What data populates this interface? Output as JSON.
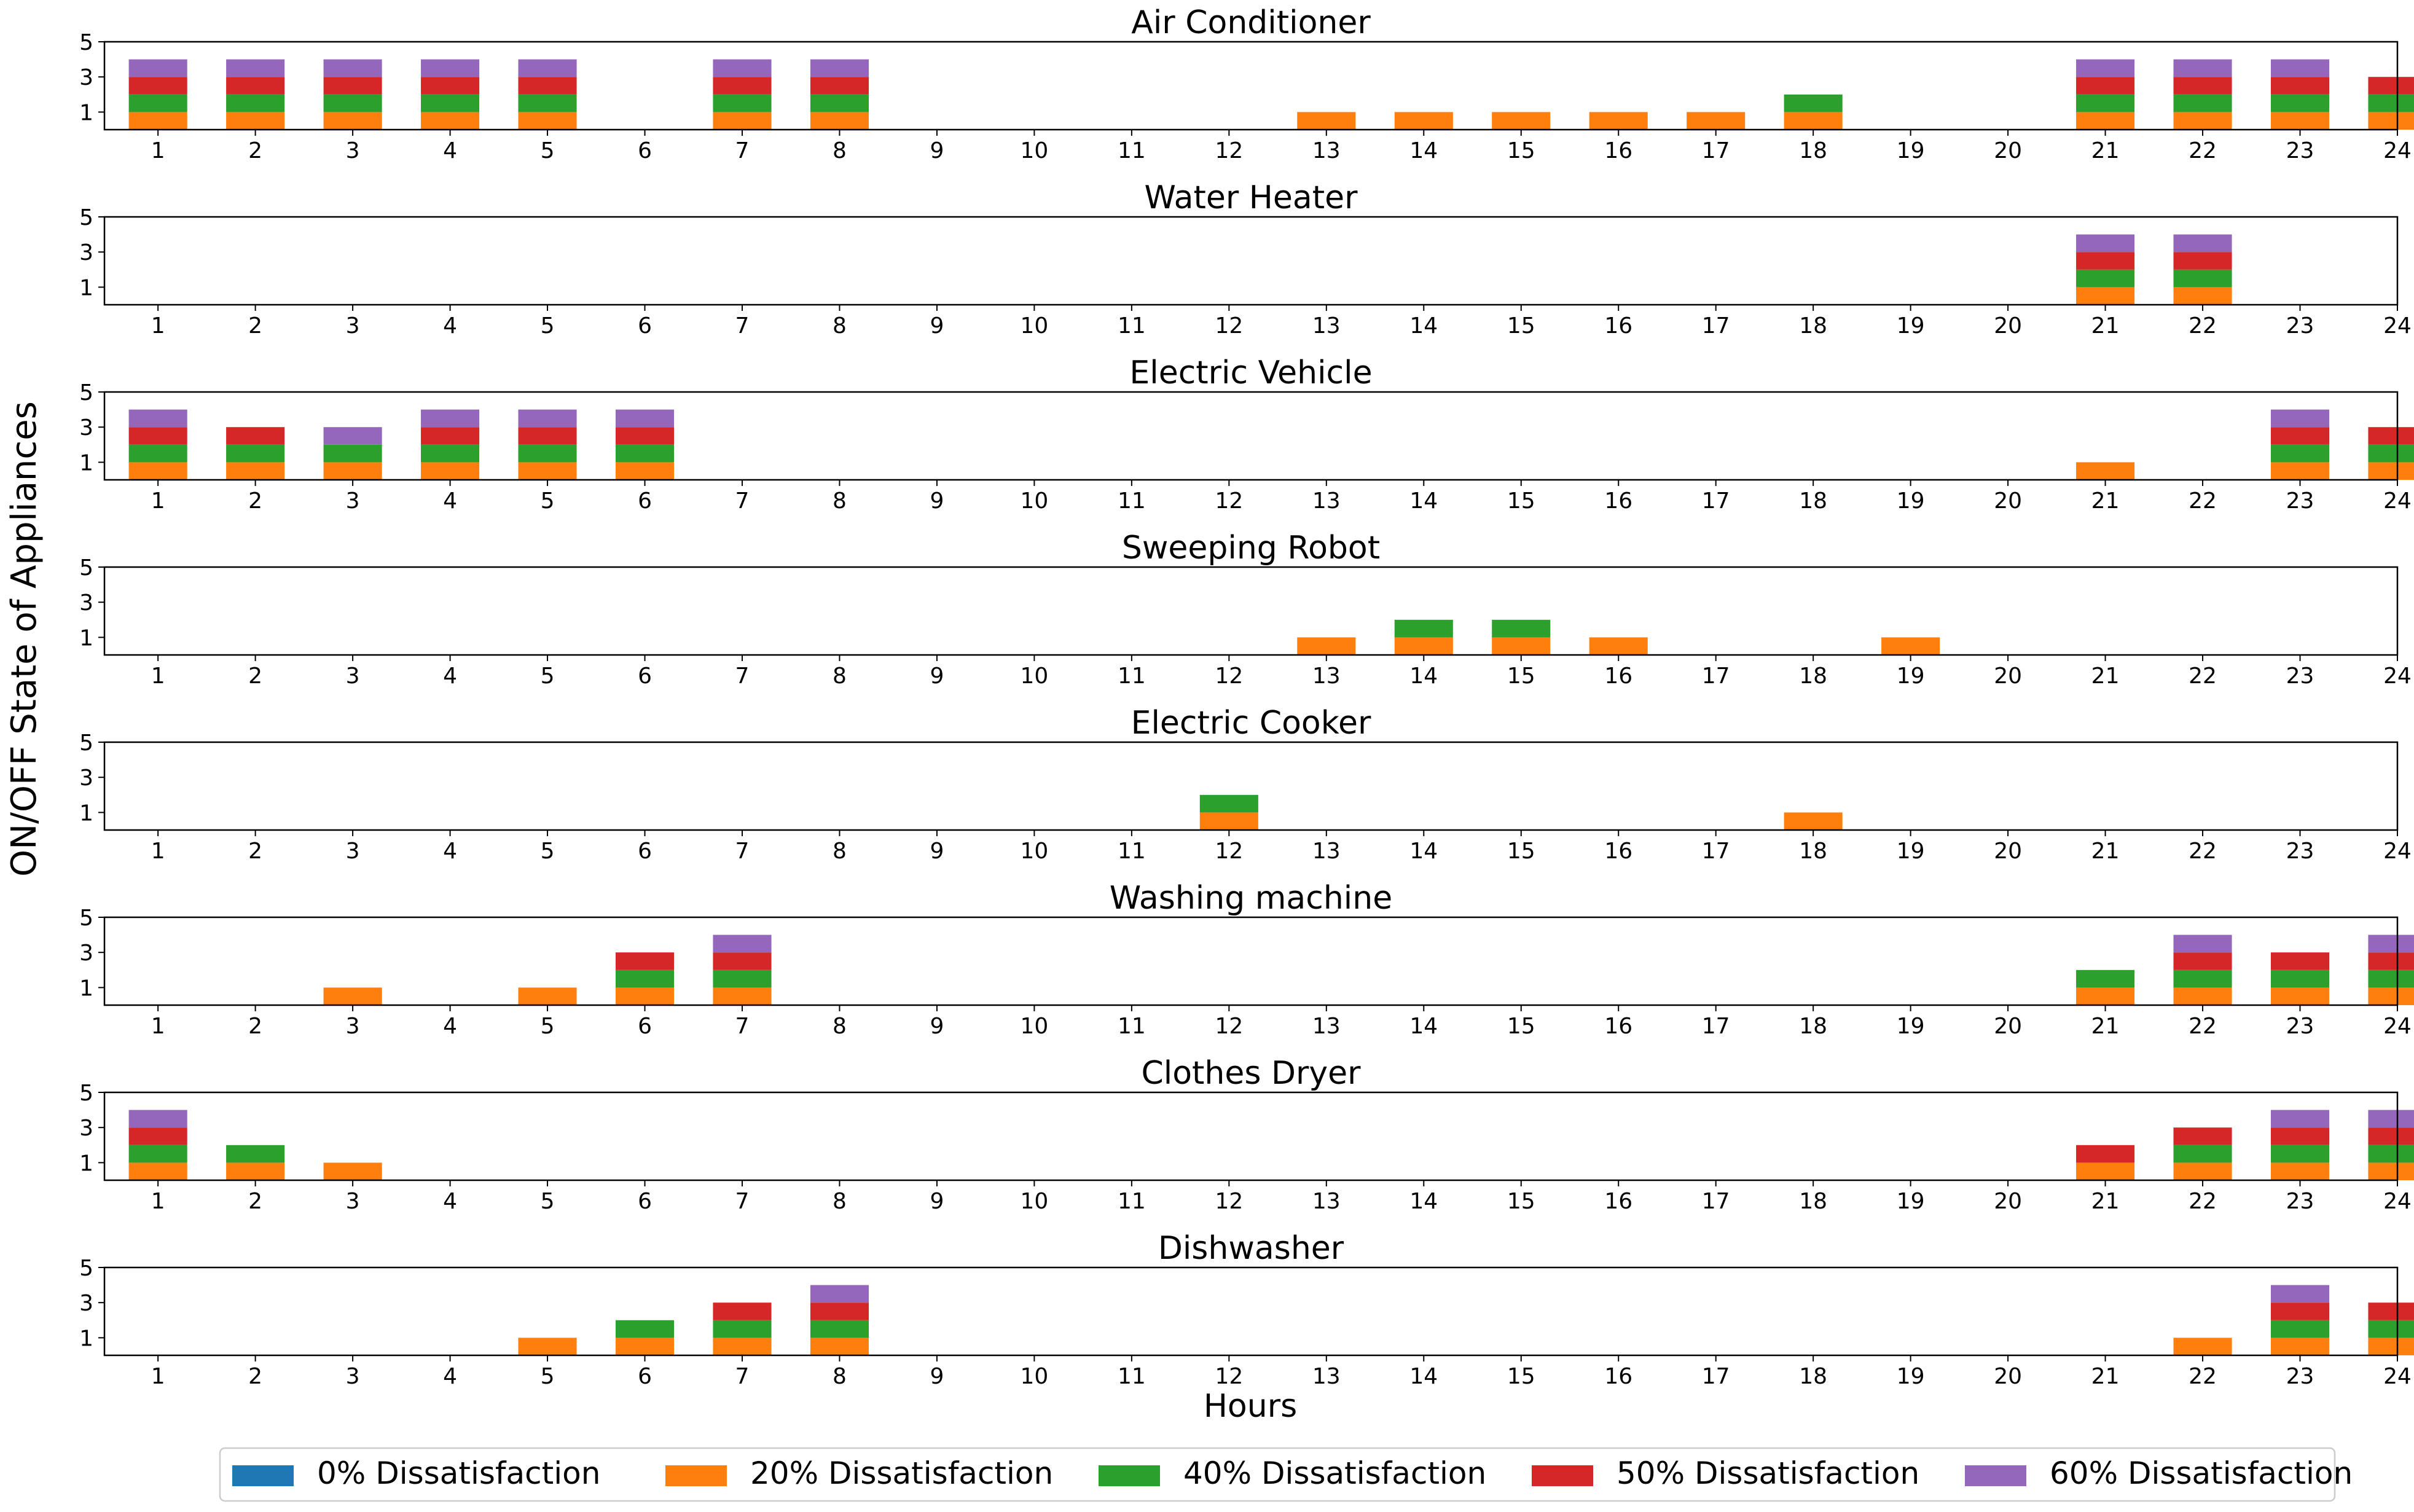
{
  "chart_data": {
    "type": "bar",
    "stacked": true,
    "xlabel": "Hours",
    "ylabel": "ON/OFF State of Appliances",
    "x": [
      1,
      2,
      3,
      4,
      5,
      6,
      7,
      8,
      9,
      10,
      11,
      12,
      13,
      14,
      15,
      16,
      17,
      18,
      19,
      20,
      21,
      22,
      23,
      24
    ],
    "ylim": [
      0,
      5
    ],
    "yticks": [
      1,
      3,
      5
    ],
    "legend_position": "bottom",
    "series": [
      {
        "name": "0% Dissatisfaction",
        "color": "#1f77b4"
      },
      {
        "name": "20% Dissatisfaction",
        "color": "#ff7f0e"
      },
      {
        "name": "40% Dissatisfaction",
        "color": "#2ca02c"
      },
      {
        "name": "50% Dissatisfaction",
        "color": "#d62728"
      },
      {
        "name": "60% Dissatisfaction",
        "color": "#9467bd"
      }
    ],
    "panels": [
      {
        "title": "Air Conditioner",
        "values": {
          "0% Dissatisfaction": [
            0,
            0,
            0,
            0,
            0,
            0,
            0,
            0,
            0,
            0,
            0,
            0,
            0,
            0,
            0,
            0,
            0,
            0,
            0,
            0,
            0,
            0,
            0,
            0
          ],
          "20% Dissatisfaction": [
            1,
            1,
            1,
            1,
            1,
            0,
            1,
            1,
            0,
            0,
            0,
            0,
            1,
            1,
            1,
            1,
            1,
            1,
            0,
            0,
            1,
            1,
            1,
            1
          ],
          "40% Dissatisfaction": [
            1,
            1,
            1,
            1,
            1,
            0,
            1,
            1,
            0,
            0,
            0,
            0,
            0,
            0,
            0,
            0,
            0,
            1,
            0,
            0,
            1,
            1,
            1,
            1
          ],
          "50% Dissatisfaction": [
            1,
            1,
            1,
            1,
            1,
            0,
            1,
            1,
            0,
            0,
            0,
            0,
            0,
            0,
            0,
            0,
            0,
            0,
            0,
            0,
            1,
            1,
            1,
            1
          ],
          "60% Dissatisfaction": [
            1,
            1,
            1,
            1,
            1,
            0,
            1,
            1,
            0,
            0,
            0,
            0,
            0,
            0,
            0,
            0,
            0,
            0,
            0,
            0,
            1,
            1,
            1,
            0
          ]
        }
      },
      {
        "title": "Water Heater",
        "values": {
          "0% Dissatisfaction": [
            0,
            0,
            0,
            0,
            0,
            0,
            0,
            0,
            0,
            0,
            0,
            0,
            0,
            0,
            0,
            0,
            0,
            0,
            0,
            0,
            0,
            0,
            0,
            0
          ],
          "20% Dissatisfaction": [
            0,
            0,
            0,
            0,
            0,
            0,
            0,
            0,
            0,
            0,
            0,
            0,
            0,
            0,
            0,
            0,
            0,
            0,
            0,
            0,
            1,
            1,
            0,
            0
          ],
          "40% Dissatisfaction": [
            0,
            0,
            0,
            0,
            0,
            0,
            0,
            0,
            0,
            0,
            0,
            0,
            0,
            0,
            0,
            0,
            0,
            0,
            0,
            0,
            1,
            1,
            0,
            0
          ],
          "50% Dissatisfaction": [
            0,
            0,
            0,
            0,
            0,
            0,
            0,
            0,
            0,
            0,
            0,
            0,
            0,
            0,
            0,
            0,
            0,
            0,
            0,
            0,
            1,
            1,
            0,
            0
          ],
          "60% Dissatisfaction": [
            0,
            0,
            0,
            0,
            0,
            0,
            0,
            0,
            0,
            0,
            0,
            0,
            0,
            0,
            0,
            0,
            0,
            0,
            0,
            0,
            1,
            1,
            0,
            0
          ]
        }
      },
      {
        "title": "Electric Vehicle",
        "values": {
          "0% Dissatisfaction": [
            0,
            0,
            0,
            0,
            0,
            0,
            0,
            0,
            0,
            0,
            0,
            0,
            0,
            0,
            0,
            0,
            0,
            0,
            0,
            0,
            0,
            0,
            0,
            0
          ],
          "20% Dissatisfaction": [
            1,
            1,
            1,
            1,
            1,
            1,
            0,
            0,
            0,
            0,
            0,
            0,
            0,
            0,
            0,
            0,
            0,
            0,
            0,
            0,
            1,
            0,
            1,
            1
          ],
          "40% Dissatisfaction": [
            1,
            1,
            1,
            1,
            1,
            1,
            0,
            0,
            0,
            0,
            0,
            0,
            0,
            0,
            0,
            0,
            0,
            0,
            0,
            0,
            0,
            0,
            1,
            1
          ],
          "50% Dissatisfaction": [
            1,
            1,
            0,
            1,
            1,
            1,
            0,
            0,
            0,
            0,
            0,
            0,
            0,
            0,
            0,
            0,
            0,
            0,
            0,
            0,
            0,
            0,
            1,
            1
          ],
          "60% Dissatisfaction": [
            1,
            0,
            1,
            1,
            1,
            1,
            0,
            0,
            0,
            0,
            0,
            0,
            0,
            0,
            0,
            0,
            0,
            0,
            0,
            0,
            0,
            0,
            1,
            0
          ]
        }
      },
      {
        "title": "Sweeping Robot",
        "values": {
          "0% Dissatisfaction": [
            0,
            0,
            0,
            0,
            0,
            0,
            0,
            0,
            0,
            0,
            0,
            0,
            0,
            0,
            0,
            0,
            0,
            0,
            0,
            0,
            0,
            0,
            0,
            0
          ],
          "20% Dissatisfaction": [
            0,
            0,
            0,
            0,
            0,
            0,
            0,
            0,
            0,
            0,
            0,
            0,
            1,
            1,
            1,
            1,
            0,
            0,
            1,
            0,
            0,
            0,
            0,
            0
          ],
          "40% Dissatisfaction": [
            0,
            0,
            0,
            0,
            0,
            0,
            0,
            0,
            0,
            0,
            0,
            0,
            0,
            1,
            1,
            0,
            0,
            0,
            0,
            0,
            0,
            0,
            0,
            0
          ],
          "50% Dissatisfaction": [
            0,
            0,
            0,
            0,
            0,
            0,
            0,
            0,
            0,
            0,
            0,
            0,
            0,
            0,
            0,
            0,
            0,
            0,
            0,
            0,
            0,
            0,
            0,
            0
          ],
          "60% Dissatisfaction": [
            0,
            0,
            0,
            0,
            0,
            0,
            0,
            0,
            0,
            0,
            0,
            0,
            0,
            0,
            0,
            0,
            0,
            0,
            0,
            0,
            0,
            0,
            0,
            0
          ]
        }
      },
      {
        "title": "Electric Cooker",
        "values": {
          "0% Dissatisfaction": [
            0,
            0,
            0,
            0,
            0,
            0,
            0,
            0,
            0,
            0,
            0,
            0,
            0,
            0,
            0,
            0,
            0,
            0,
            0,
            0,
            0,
            0,
            0,
            0
          ],
          "20% Dissatisfaction": [
            0,
            0,
            0,
            0,
            0,
            0,
            0,
            0,
            0,
            0,
            0,
            1,
            0,
            0,
            0,
            0,
            0,
            1,
            0,
            0,
            0,
            0,
            0,
            0
          ],
          "40% Dissatisfaction": [
            0,
            0,
            0,
            0,
            0,
            0,
            0,
            0,
            0,
            0,
            0,
            1,
            0,
            0,
            0,
            0,
            0,
            0,
            0,
            0,
            0,
            0,
            0,
            0
          ],
          "50% Dissatisfaction": [
            0,
            0,
            0,
            0,
            0,
            0,
            0,
            0,
            0,
            0,
            0,
            0,
            0,
            0,
            0,
            0,
            0,
            0,
            0,
            0,
            0,
            0,
            0,
            0
          ],
          "60% Dissatisfaction": [
            0,
            0,
            0,
            0,
            0,
            0,
            0,
            0,
            0,
            0,
            0,
            0,
            0,
            0,
            0,
            0,
            0,
            0,
            0,
            0,
            0,
            0,
            0,
            0
          ]
        }
      },
      {
        "title": "Washing machine",
        "values": {
          "0% Dissatisfaction": [
            0,
            0,
            0,
            0,
            0,
            0,
            0,
            0,
            0,
            0,
            0,
            0,
            0,
            0,
            0,
            0,
            0,
            0,
            0,
            0,
            0,
            0,
            0,
            0
          ],
          "20% Dissatisfaction": [
            0,
            0,
            1,
            0,
            1,
            1,
            1,
            0,
            0,
            0,
            0,
            0,
            0,
            0,
            0,
            0,
            0,
            0,
            0,
            0,
            1,
            1,
            1,
            1
          ],
          "40% Dissatisfaction": [
            0,
            0,
            0,
            0,
            0,
            1,
            1,
            0,
            0,
            0,
            0,
            0,
            0,
            0,
            0,
            0,
            0,
            0,
            0,
            0,
            1,
            1,
            1,
            1
          ],
          "50% Dissatisfaction": [
            0,
            0,
            0,
            0,
            0,
            1,
            1,
            0,
            0,
            0,
            0,
            0,
            0,
            0,
            0,
            0,
            0,
            0,
            0,
            0,
            0,
            1,
            1,
            1
          ],
          "60% Dissatisfaction": [
            0,
            0,
            0,
            0,
            0,
            0,
            1,
            0,
            0,
            0,
            0,
            0,
            0,
            0,
            0,
            0,
            0,
            0,
            0,
            0,
            0,
            1,
            0,
            1
          ]
        }
      },
      {
        "title": "Clothes Dryer",
        "values": {
          "0% Dissatisfaction": [
            0,
            0,
            0,
            0,
            0,
            0,
            0,
            0,
            0,
            0,
            0,
            0,
            0,
            0,
            0,
            0,
            0,
            0,
            0,
            0,
            0,
            0,
            0,
            0
          ],
          "20% Dissatisfaction": [
            1,
            1,
            1,
            0,
            0,
            0,
            0,
            0,
            0,
            0,
            0,
            0,
            0,
            0,
            0,
            0,
            0,
            0,
            0,
            0,
            1,
            1,
            1,
            1
          ],
          "40% Dissatisfaction": [
            1,
            1,
            0,
            0,
            0,
            0,
            0,
            0,
            0,
            0,
            0,
            0,
            0,
            0,
            0,
            0,
            0,
            0,
            0,
            0,
            0,
            1,
            1,
            1
          ],
          "50% Dissatisfaction": [
            1,
            0,
            0,
            0,
            0,
            0,
            0,
            0,
            0,
            0,
            0,
            0,
            0,
            0,
            0,
            0,
            0,
            0,
            0,
            0,
            1,
            1,
            1,
            1
          ],
          "60% Dissatisfaction": [
            1,
            0,
            0,
            0,
            0,
            0,
            0,
            0,
            0,
            0,
            0,
            0,
            0,
            0,
            0,
            0,
            0,
            0,
            0,
            0,
            0,
            0,
            1,
            1
          ]
        }
      },
      {
        "title": "Dishwasher",
        "values": {
          "0% Dissatisfaction": [
            0,
            0,
            0,
            0,
            0,
            0,
            0,
            0,
            0,
            0,
            0,
            0,
            0,
            0,
            0,
            0,
            0,
            0,
            0,
            0,
            0,
            0,
            0,
            0
          ],
          "20% Dissatisfaction": [
            0,
            0,
            0,
            0,
            1,
            1,
            1,
            1,
            0,
            0,
            0,
            0,
            0,
            0,
            0,
            0,
            0,
            0,
            0,
            0,
            0,
            1,
            1,
            1
          ],
          "40% Dissatisfaction": [
            0,
            0,
            0,
            0,
            0,
            1,
            1,
            1,
            0,
            0,
            0,
            0,
            0,
            0,
            0,
            0,
            0,
            0,
            0,
            0,
            0,
            0,
            1,
            1
          ],
          "50% Dissatisfaction": [
            0,
            0,
            0,
            0,
            0,
            0,
            1,
            1,
            0,
            0,
            0,
            0,
            0,
            0,
            0,
            0,
            0,
            0,
            0,
            0,
            0,
            0,
            1,
            1
          ],
          "60% Dissatisfaction": [
            0,
            0,
            0,
            0,
            0,
            0,
            0,
            1,
            0,
            0,
            0,
            0,
            0,
            0,
            0,
            0,
            0,
            0,
            0,
            0,
            0,
            0,
            1,
            0
          ]
        }
      }
    ]
  }
}
